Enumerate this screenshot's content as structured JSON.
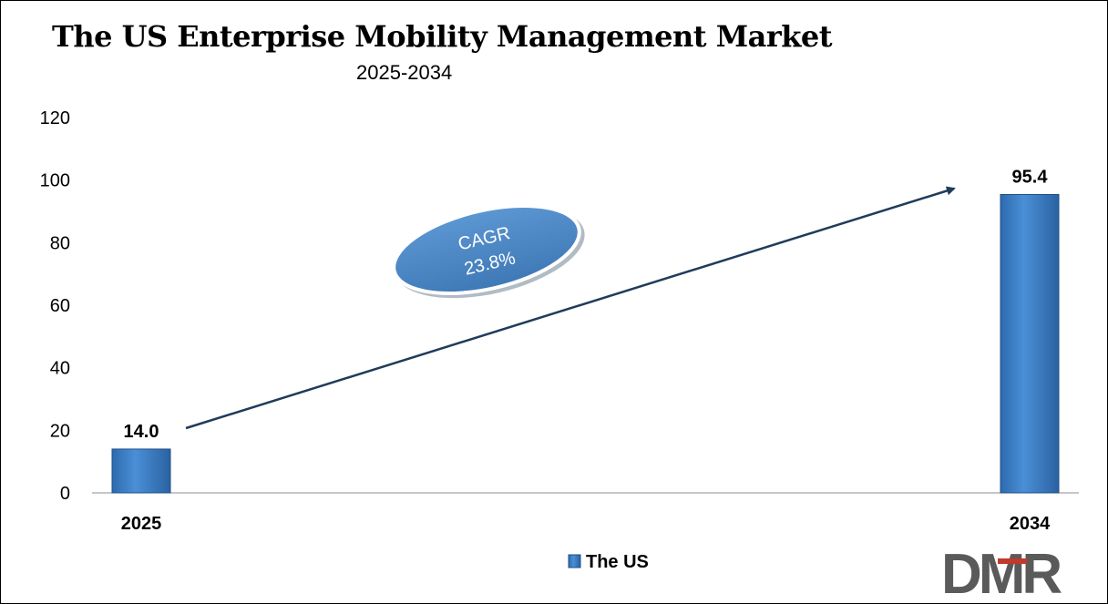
{
  "chart_data": {
    "type": "bar",
    "title": "The US Enterprise Mobility Management Market",
    "subtitle": "2025-2034",
    "categories": [
      "2025",
      "2034"
    ],
    "series": [
      {
        "name": "The US",
        "values": [
          14.0,
          95.4
        ],
        "value_labels": [
          "14.0",
          "95.4"
        ]
      }
    ],
    "ylim": [
      0,
      120
    ],
    "y_ticks": [
      0,
      20,
      40,
      60,
      80,
      100,
      120
    ],
    "y_tick_labels": [
      "0",
      "20",
      "40",
      "60",
      "80",
      "100",
      "120"
    ],
    "grid": false,
    "legend_placement": "bottom-center",
    "annotation": {
      "line1": "CAGR",
      "line2": "23.8%"
    },
    "colors": {
      "bar": "#3a7cc4",
      "bar_edge": "#1f4f84",
      "arrow": "#1f3c5a",
      "ellipse": "#4a86c4",
      "axis": "#8c8c8c"
    }
  },
  "logo": {
    "text": "DMR",
    "colors": {
      "dark": "#5a5a5a",
      "accent": "#c0392b"
    }
  }
}
